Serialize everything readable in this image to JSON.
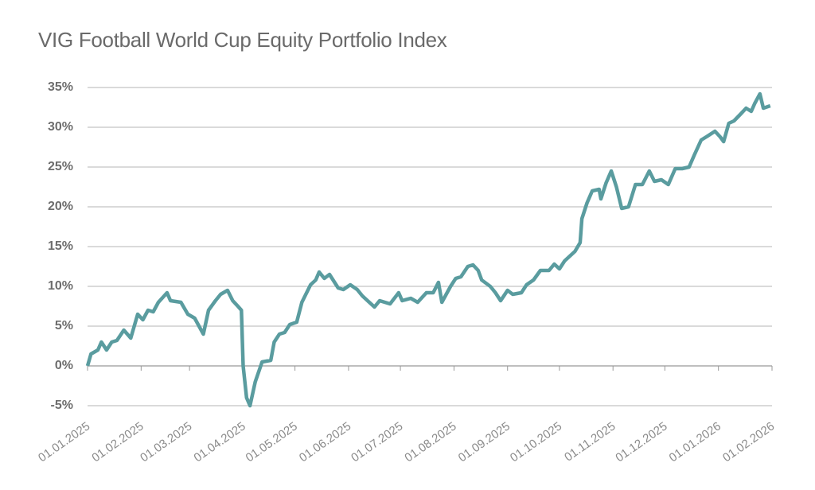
{
  "chart_data": {
    "type": "line",
    "title": "VIG Football World Cup Equity Portfolio Index",
    "x": [
      "01.01.2025",
      "03.01.2025",
      "07.01.2025",
      "09.01.2025",
      "12.01.2025",
      "15.01.2025",
      "18.01.2025",
      "22.01.2025",
      "26.01.2025",
      "30.01.2025",
      "02.02.2025",
      "05.02.2025",
      "08.02.2025",
      "11.02.2025",
      "16.02.2025",
      "18.02.2025",
      "24.02.2025",
      "28.02.2025",
      "04.03.2025",
      "09.03.2025",
      "12.03.2025",
      "16.03.2025",
      "19.03.2025",
      "23.03.2025",
      "26.03.2025",
      "29.03.2025",
      "31.03.2025",
      "01.04.2025",
      "03.04.2025",
      "05.04.2025",
      "08.04.2025",
      "12.04.2025",
      "17.04.2025",
      "19.04.2025",
      "22.04.2025",
      "25.04.2025",
      "28.04.2025",
      "02.05.2025",
      "05.05.2025",
      "10.05.2025",
      "13.05.2025",
      "15.05.2025",
      "18.05.2025",
      "21.05.2025",
      "26.05.2025",
      "29.05.2025",
      "02.06.2025",
      "06.06.2025",
      "09.06.2025",
      "12.06.2025",
      "16.06.2025",
      "19.06.2025",
      "25.06.2025",
      "30.06.2025",
      "02.07.2025",
      "07.07.2025",
      "11.07.2025",
      "16.07.2025",
      "20.07.2025",
      "23.07.2025",
      "25.07.2025",
      "30.07.2025",
      "02.08.2025",
      "05.08.2025",
      "09.08.2025",
      "12.08.2025",
      "15.08.2025",
      "17.08.2025",
      "22.08.2025",
      "25.08.2025",
      "28.08.2025",
      "01.09.2025",
      "04.09.2025",
      "09.09.2025",
      "12.09.2025",
      "16.09.2025",
      "20.09.2025",
      "25.09.2025",
      "28.09.2025",
      "01.10.2025",
      "04.10.2025",
      "07.10.2025",
      "10.10.2025",
      "13.10.2025",
      "14.10.2025",
      "17.10.2025",
      "20.10.2025",
      "24.10.2025",
      "25.10.2025",
      "28.10.2025",
      "31.10.2025",
      "03.11.2025",
      "06.11.2025",
      "10.11.2025",
      "14.11.2025",
      "18.11.2025",
      "22.11.2025",
      "25.11.2025",
      "29.11.2025",
      "03.12.2025",
      "07.12.2025",
      "11.12.2025",
      "15.12.2025",
      "18.12.2025",
      "22.12.2025",
      "25.12.2025",
      "30.12.2025",
      "02.01.2026",
      "04.01.2026",
      "07.01.2026",
      "10.01.2026",
      "14.01.2026",
      "17.01.2026",
      "20.01.2026",
      "22.01.2026",
      "25.01.2026",
      "27.01.2026",
      "31.01.2026"
    ],
    "series": [
      {
        "name": "VIG Football World Cup Equity Portfolio Index",
        "color": "#5a9c9f",
        "values": [
          0,
          1.5,
          2,
          3,
          2,
          3,
          3.2,
          4.5,
          3.5,
          6.5,
          5.8,
          7,
          6.8,
          8,
          9.2,
          8.2,
          8,
          6.5,
          6,
          4,
          7,
          8.2,
          9,
          9.5,
          8.2,
          7.5,
          7,
          0,
          -4,
          -5,
          -2,
          0.5,
          0.7,
          3,
          4,
          4.2,
          5.2,
          5.5,
          8,
          10.2,
          10.8,
          11.8,
          11,
          11.5,
          9.8,
          9.6,
          10.2,
          9.6,
          8.8,
          8.2,
          7.4,
          8.2,
          7.8,
          9.2,
          8.2,
          8.5,
          8,
          9.2,
          9.2,
          10.5,
          8,
          10,
          11,
          11.2,
          12.5,
          12.7,
          12,
          10.8,
          10,
          9.2,
          8.2,
          9.5,
          9,
          9.2,
          10.2,
          10.8,
          12,
          12,
          12.8,
          12.2,
          13.2,
          13.8,
          14.4,
          15.5,
          18.5,
          20.5,
          22,
          22.2,
          21,
          23,
          24.5,
          22.5,
          19.8,
          20,
          22.8,
          22.8,
          24.5,
          23.2,
          23.4,
          22.8,
          24.8,
          24.8,
          25,
          26.5,
          28.4,
          28.8,
          29.5,
          28.8,
          28.2,
          30.5,
          30.8,
          31.7,
          32.4,
          32,
          33,
          34.2,
          32.4,
          32.7
        ]
      }
    ],
    "xlim": [
      "01.01.2025",
      "01.02.2026"
    ],
    "xticks": [
      "01.01.2025",
      "01.02.2025",
      "01.03.2025",
      "01.04.2025",
      "01.05.2025",
      "01.06.2025",
      "01.07.2025",
      "01.08.2025",
      "01.09.2025",
      "01.10.2025",
      "01.11.2025",
      "01.12.2025",
      "01.01.2026",
      "01.02.2026"
    ],
    "ylim": [
      -5,
      35
    ],
    "yticks": [
      {
        "value": -5,
        "label": "-5%"
      },
      {
        "value": 0,
        "label": "0%"
      },
      {
        "value": 5,
        "label": "5%"
      },
      {
        "value": 10,
        "label": "10%"
      },
      {
        "value": 15,
        "label": "15%"
      },
      {
        "value": 20,
        "label": "20%"
      },
      {
        "value": 25,
        "label": "25%"
      },
      {
        "value": 30,
        "label": "30%"
      },
      {
        "value": 35,
        "label": "35%"
      }
    ],
    "grid": true
  }
}
